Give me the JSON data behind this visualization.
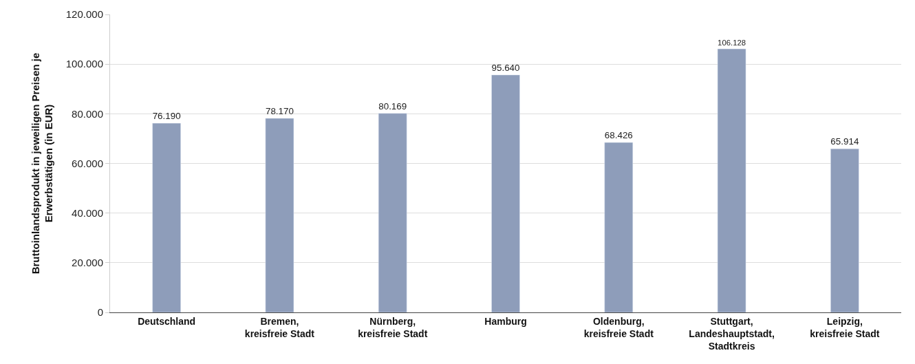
{
  "chart_data": {
    "type": "bar",
    "ylabel": "Bruttoinlandsprodukt in jeweiligen Preisen je Erwerbstätigen (in EUR)",
    "categories": [
      "Deutschland",
      "Bremen, kreisfreie Stadt",
      "Nürnberg, kreisfreie Stadt",
      "Hamburg",
      "Oldenburg, kreisfreie Stadt",
      "Stuttgart, Landeshauptstadt, Stadtkreis",
      "Leipzig, kreisfreie Stadt"
    ],
    "values": [
      76190,
      78170,
      80169,
      95640,
      68426,
      106128,
      65914
    ],
    "value_labels": [
      "76.190",
      "78.170",
      "80.169",
      "95.640",
      "68.426",
      "106.128",
      "65.914"
    ],
    "color": "#8e9dba",
    "ylim": [
      0,
      120000
    ],
    "yticks": [
      {
        "value": 0,
        "label": "0"
      },
      {
        "value": 20000,
        "label": "20.000"
      },
      {
        "value": 40000,
        "label": "40.000"
      },
      {
        "value": 60000,
        "label": "60.000"
      },
      {
        "value": 80000,
        "label": "80.000"
      },
      {
        "value": 100000,
        "label": "100.000"
      },
      {
        "value": 120000,
        "label": "120.000"
      }
    ],
    "grid": "y"
  }
}
